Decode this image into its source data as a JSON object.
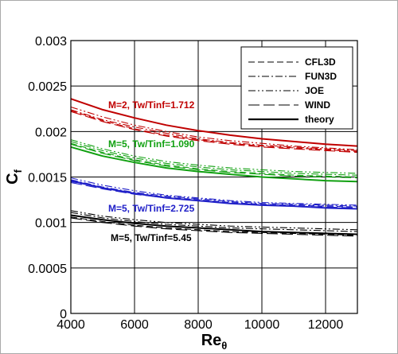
{
  "chart_data": {
    "type": "line",
    "xlabel": "Re",
    "xlabel_sub": "θ",
    "ylabel": "C",
    "ylabel_sub": "f",
    "xlim": [
      4000,
      13000
    ],
    "ylim": [
      0,
      0.003
    ],
    "x_ticks": [
      4000,
      6000,
      8000,
      10000,
      12000
    ],
    "x_tick_labels": [
      "4000",
      "6000",
      "8000",
      "10000",
      "12000"
    ],
    "y_ticks": [
      0,
      0.0005,
      0.001,
      0.0015,
      0.002,
      0.0025,
      0.003
    ],
    "y_tick_labels": [
      "0",
      "0.0005",
      "0.001",
      "0.0015",
      "0.002",
      "0.0025",
      "0.003"
    ],
    "grid": true,
    "legend_position": "top-right",
    "legend": [
      {
        "label": "CFL3D",
        "style": "dashed"
      },
      {
        "label": "FUN3D",
        "style": "dashdot"
      },
      {
        "label": "JOE",
        "style": "dashdotdot"
      },
      {
        "label": "WIND",
        "style": "longdash"
      },
      {
        "label": "theory",
        "style": "solid"
      }
    ],
    "x": [
      4000,
      5000,
      6000,
      7000,
      8000,
      9000,
      10000,
      11000,
      12000,
      13000
    ],
    "groups": [
      {
        "annotation": "M=2, Tw/Tinf=1.712",
        "color": "#c00000",
        "theory": [
          0.00236,
          0.00224,
          0.00215,
          0.00207,
          0.00201,
          0.00196,
          0.00192,
          0.00189,
          0.00186,
          0.00184
        ],
        "CFL3D": [
          0.00223,
          0.00212,
          0.00203,
          0.00196,
          0.00191,
          0.00187,
          0.00184,
          0.00182,
          0.0018,
          0.00178
        ],
        "FUN3D": [
          0.00224,
          0.00213,
          0.00205,
          0.00198,
          0.00192,
          0.00188,
          0.00185,
          0.00183,
          0.00181,
          0.00179
        ],
        "JOE": [
          0.00227,
          0.00216,
          0.00207,
          0.002,
          0.00194,
          0.0019,
          0.00187,
          0.00184,
          0.00182,
          0.0018
        ],
        "WIND": [
          0.00222,
          0.00211,
          0.00202,
          0.00195,
          0.0019,
          0.00186,
          0.00183,
          0.00181,
          0.00179,
          0.00177
        ]
      },
      {
        "annotation": "M=5, Tw/Tinf=1.090",
        "color": "#10a010",
        "theory": [
          0.00183,
          0.00173,
          0.00166,
          0.0016,
          0.00156,
          0.00153,
          0.0015,
          0.00148,
          0.00146,
          0.00145
        ],
        "CFL3D": [
          0.00187,
          0.00177,
          0.00169,
          0.00163,
          0.00159,
          0.00156,
          0.00154,
          0.00152,
          0.00151,
          0.0015
        ],
        "FUN3D": [
          0.00189,
          0.00179,
          0.00171,
          0.00165,
          0.00161,
          0.00158,
          0.00156,
          0.00154,
          0.00153,
          0.00152
        ],
        "JOE": [
          0.00191,
          0.00181,
          0.00173,
          0.00167,
          0.00163,
          0.0016,
          0.00158,
          0.00156,
          0.00155,
          0.00154
        ],
        "WIND": [
          0.00186,
          0.00176,
          0.00168,
          0.00162,
          0.00158,
          0.00155,
          0.00153,
          0.00151,
          0.0015,
          0.00149
        ]
      },
      {
        "annotation": "M=5, Tw/Tinf=2.725",
        "color": "#2020c8",
        "theory": [
          0.00146,
          0.00138,
          0.00132,
          0.00127,
          0.00124,
          0.00121,
          0.00119,
          0.00118,
          0.00116,
          0.00115
        ],
        "CFL3D": [
          0.00145,
          0.00138,
          0.00132,
          0.00128,
          0.00125,
          0.00122,
          0.0012,
          0.00119,
          0.00118,
          0.00117
        ],
        "FUN3D": [
          0.00147,
          0.00139,
          0.00133,
          0.00129,
          0.00126,
          0.00123,
          0.00121,
          0.0012,
          0.00119,
          0.00118
        ],
        "JOE": [
          0.00149,
          0.00141,
          0.00135,
          0.0013,
          0.00127,
          0.00124,
          0.00122,
          0.00121,
          0.0012,
          0.00119
        ],
        "WIND": [
          0.00144,
          0.00137,
          0.00131,
          0.00127,
          0.00124,
          0.00121,
          0.00119,
          0.00118,
          0.00117,
          0.00116
        ]
      },
      {
        "annotation": "M=5, Tw/Tinf=5.45",
        "color": "#000000",
        "theory": [
          0.00108,
          0.00103,
          0.00099,
          0.00096,
          0.00094,
          0.00092,
          0.0009,
          0.00089,
          0.00088,
          0.00087
        ],
        "CFL3D": [
          0.00106,
          0.00101,
          0.00097,
          0.00094,
          0.00092,
          0.0009,
          0.00089,
          0.00088,
          0.00087,
          0.00086
        ],
        "FUN3D": [
          0.00111,
          0.00105,
          0.00101,
          0.00098,
          0.00096,
          0.00094,
          0.00093,
          0.00092,
          0.00091,
          0.0009
        ],
        "JOE": [
          0.00113,
          0.00107,
          0.00103,
          0.001,
          0.00098,
          0.00096,
          0.00095,
          0.00094,
          0.00093,
          0.00092
        ],
        "WIND": [
          0.00105,
          0.001,
          0.00096,
          0.00093,
          0.00091,
          0.00089,
          0.00088,
          0.00087,
          0.00086,
          0.00085
        ]
      }
    ]
  }
}
